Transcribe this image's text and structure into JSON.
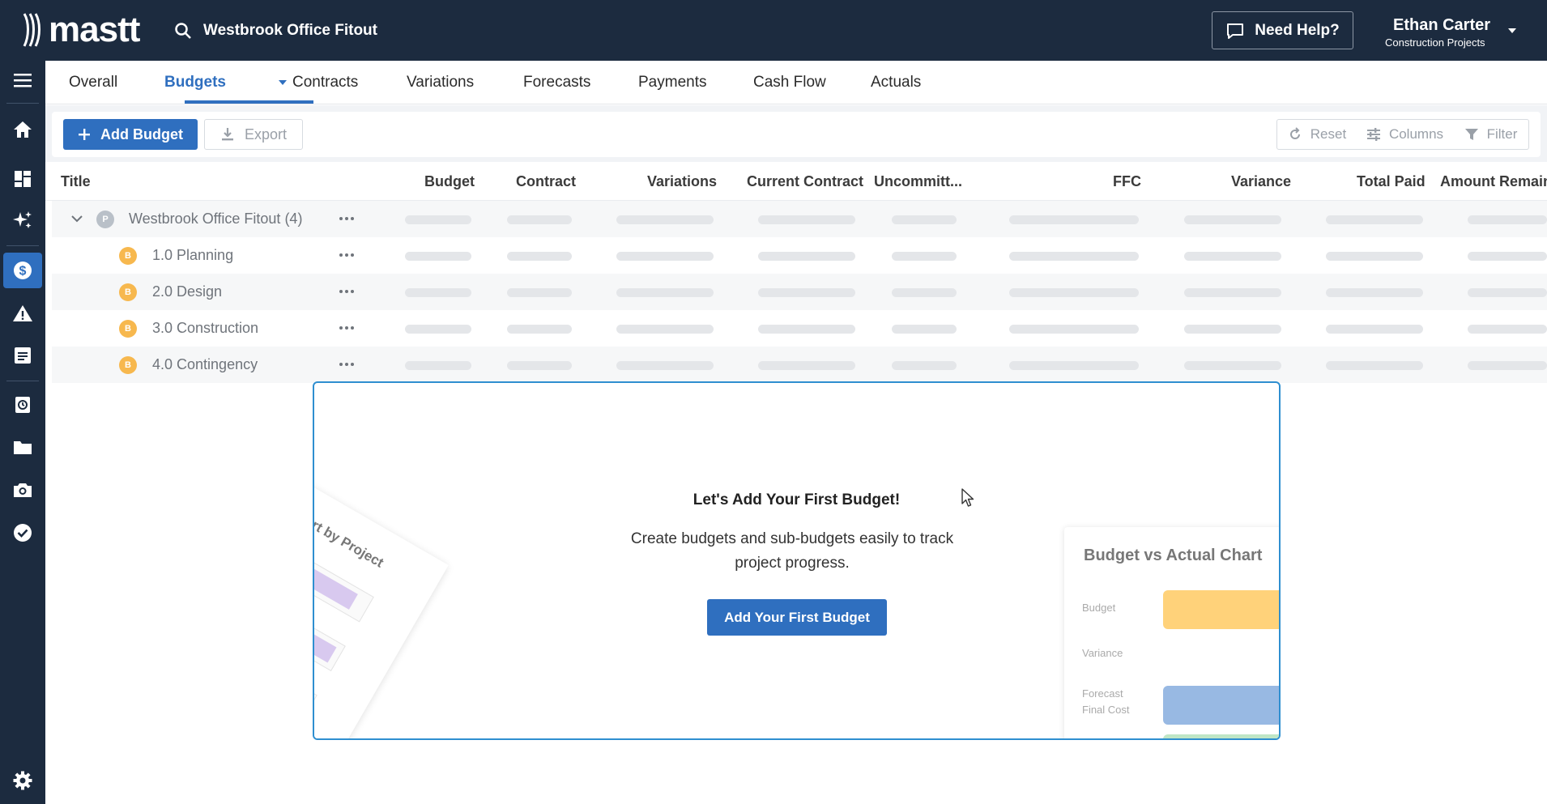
{
  "app": {
    "logo_text": "mastt",
    "project_search": "Westbrook Office Fitout",
    "help_label": "Need Help?",
    "user_name": "Ethan Carter",
    "user_subtitle": "Construction Projects"
  },
  "sidebar": {
    "items": [
      {
        "name": "menu-icon"
      },
      {
        "name": "home-icon"
      },
      {
        "name": "dashboard-icon"
      },
      {
        "name": "sparkle-icon"
      },
      {
        "name": "dollar-icon",
        "active": true
      },
      {
        "name": "warning-icon"
      },
      {
        "name": "notes-icon"
      },
      {
        "name": "history-icon"
      },
      {
        "name": "folder-icon"
      },
      {
        "name": "camera-icon"
      },
      {
        "name": "check-circle-icon"
      },
      {
        "name": "gear-icon"
      }
    ]
  },
  "tabs": [
    {
      "label": "Overall"
    },
    {
      "label": "Budgets",
      "active": true
    },
    {
      "label": "Contracts"
    },
    {
      "label": "Variations"
    },
    {
      "label": "Forecasts"
    },
    {
      "label": "Payments"
    },
    {
      "label": "Cash Flow"
    },
    {
      "label": "Actuals"
    }
  ],
  "toolbar": {
    "add_label": "Add Budget",
    "export_label": "Export",
    "reset_label": "Reset",
    "columns_label": "Columns",
    "filter_label": "Filter"
  },
  "table": {
    "columns": [
      "Title",
      "Budget",
      "Contract",
      "Variations",
      "Current Contract",
      "Uncommitt...",
      "FFC",
      "Variance",
      "Total Paid",
      "Amount Remain"
    ],
    "rows": [
      {
        "badge": "P",
        "title": "Westbrook Office Fitout",
        "count": "(4)",
        "level": 0
      },
      {
        "badge": "B",
        "title": "1.0 Planning",
        "level": 1
      },
      {
        "badge": "B",
        "title": "2.0 Design",
        "level": 1
      },
      {
        "badge": "B",
        "title": "3.0 Construction",
        "level": 1
      },
      {
        "badge": "B",
        "title": "4.0 Contingency",
        "level": 1
      }
    ]
  },
  "empty_state": {
    "title": "Let's Add Your First Budget!",
    "description": "Create budgets and sub-budgets easily to track project progress.",
    "button_label": "Add Your First Budget",
    "left_card_title": "e Bar Chart by Project",
    "right_card": {
      "title": "Budget vs Actual Chart",
      "labels": [
        "Budget",
        "Variance",
        "Forecast Final Cost"
      ],
      "colors": {
        "budget": "#ffd27a",
        "forecast": "#98b9e3",
        "actual": "#bfe6c6"
      }
    }
  }
}
